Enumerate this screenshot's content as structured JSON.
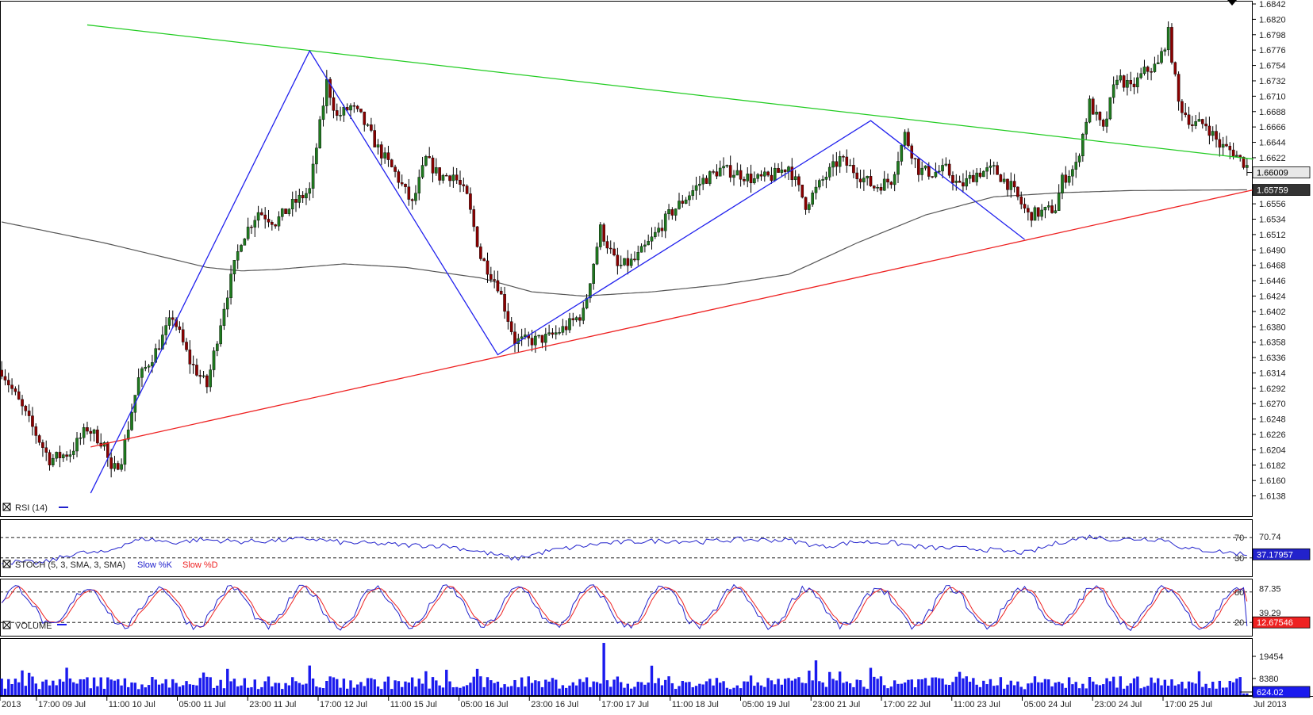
{
  "chart_data": [
    {
      "type": "candlestick",
      "title": "",
      "ylim": [
        1.6116,
        1.6842
      ],
      "y_ticks": [
        "1.6842",
        "1.6820",
        "1.6798",
        "1.6776",
        "1.6754",
        "1.6732",
        "1.6710",
        "1.6688",
        "1.6666",
        "1.6644",
        "1.6622",
        "1.6600",
        "1.6578",
        "1.6556",
        "1.6534",
        "1.6512",
        "1.6490",
        "1.6468",
        "1.6446",
        "1.6424",
        "1.6402",
        "1.6380",
        "1.6358",
        "1.6336",
        "1.6314",
        "1.6292",
        "1.6270",
        "1.6248",
        "1.6226",
        "1.6204",
        "1.6182",
        "1.6160",
        "1.6138"
      ],
      "x_labels": [
        "2013",
        "17:00 09 Jul",
        "11:00 10 Jul",
        "05:00 11 Jul",
        "23:00 11 Jul",
        "17:00 12 Jul",
        "11:00 15 Jul",
        "05:00 16 Jul",
        "23:00 16 Jul",
        "17:00 17 Jul",
        "11:00 18 Jul",
        "05:00 19 Jul",
        "23:00 21 Jul",
        "17:00 22 Jul",
        "11:00 23 Jul",
        "05:00 24 Jul",
        "23:00 24 Jul",
        "17:00 25 Jul",
        "Jul 2013"
      ],
      "price_tags": {
        "last": "1.66009",
        "ma": "1.65759"
      },
      "colors": {
        "bull": "#1f7a1f",
        "bear": "#8b0000",
        "ma": "#555555",
        "resistance": "#22cc22",
        "support": "#ee2222",
        "zigzag": "#2222ee"
      },
      "price_anchors": [
        [
          0,
          1.6318
        ],
        [
          8,
          1.6245
        ],
        [
          14,
          1.619
        ],
        [
          20,
          1.62
        ],
        [
          25,
          1.6235
        ],
        [
          30,
          1.6212
        ],
        [
          32,
          1.617
        ],
        [
          35,
          1.6192
        ],
        [
          40,
          1.6305
        ],
        [
          45,
          1.6345
        ],
        [
          50,
          1.6395
        ],
        [
          55,
          1.633
        ],
        [
          60,
          1.6295
        ],
        [
          65,
          1.641
        ],
        [
          70,
          1.6505
        ],
        [
          75,
          1.6545
        ],
        [
          80,
          1.653
        ],
        [
          85,
          1.6555
        ],
        [
          90,
          1.6575
        ],
        [
          95,
          1.673
        ],
        [
          98,
          1.668
        ],
        [
          102,
          1.6695
        ],
        [
          105,
          1.668
        ],
        [
          110,
          1.6635
        ],
        [
          115,
          1.66
        ],
        [
          120,
          1.6555
        ],
        [
          124,
          1.662
        ],
        [
          128,
          1.6595
        ],
        [
          132,
          1.6598
        ],
        [
          136,
          1.6565
        ],
        [
          140,
          1.648
        ],
        [
          145,
          1.644
        ],
        [
          150,
          1.636
        ],
        [
          155,
          1.636
        ],
        [
          160,
          1.6365
        ],
        [
          165,
          1.638
        ],
        [
          170,
          1.64
        ],
        [
          175,
          1.652
        ],
        [
          180,
          1.6465
        ],
        [
          185,
          1.6475
        ],
        [
          190,
          1.6505
        ],
        [
          195,
          1.654
        ],
        [
          200,
          1.6565
        ],
        [
          205,
          1.659
        ],
        [
          210,
          1.6605
        ],
        [
          215,
          1.66
        ],
        [
          220,
          1.659
        ],
        [
          225,
          1.6595
        ],
        [
          230,
          1.661
        ],
        [
          235,
          1.6555
        ],
        [
          240,
          1.659
        ],
        [
          245,
          1.662
        ],
        [
          250,
          1.66
        ],
        [
          255,
          1.658
        ],
        [
          260,
          1.659
        ],
        [
          264,
          1.6655
        ],
        [
          268,
          1.6605
        ],
        [
          272,
          1.66
        ],
        [
          276,
          1.6605
        ],
        [
          280,
          1.658
        ],
        [
          285,
          1.66
        ],
        [
          290,
          1.6605
        ],
        [
          295,
          1.658
        ],
        [
          300,
          1.654
        ],
        [
          305,
          1.6545
        ],
        [
          308,
          1.655
        ],
        [
          310,
          1.659
        ],
        [
          314,
          1.661
        ],
        [
          318,
          1.67
        ],
        [
          322,
          1.666
        ],
        [
          326,
          1.674
        ],
        [
          330,
          1.672
        ],
        [
          334,
          1.6745
        ],
        [
          338,
          1.6755
        ],
        [
          341,
          1.68
        ],
        [
          344,
          1.67
        ],
        [
          348,
          1.667
        ],
        [
          352,
          1.667
        ],
        [
          356,
          1.664
        ],
        [
          360,
          1.663
        ],
        [
          364,
          1.661
        ]
      ],
      "ma_anchors": [
        [
          0,
          1.653
        ],
        [
          30,
          1.65
        ],
        [
          60,
          1.6465
        ],
        [
          70,
          1.646
        ],
        [
          80,
          1.6462
        ],
        [
          100,
          1.647
        ],
        [
          118,
          1.6465
        ],
        [
          140,
          1.645
        ],
        [
          155,
          1.643
        ],
        [
          170,
          1.6424
        ],
        [
          190,
          1.643
        ],
        [
          210,
          1.644
        ],
        [
          230,
          1.6455
        ],
        [
          250,
          1.65
        ],
        [
          270,
          1.654
        ],
        [
          290,
          1.6566
        ],
        [
          310,
          1.6572
        ],
        [
          330,
          1.6575
        ],
        [
          364,
          1.6576
        ]
      ],
      "trendlines": [
        {
          "name": "resistance",
          "from": [
            25,
            1.6812
          ],
          "to": [
            364,
            1.662
          ]
        },
        {
          "name": "support",
          "from": [
            26,
            1.6208
          ],
          "to": [
            364,
            1.6576
          ]
        }
      ],
      "zigzag": [
        [
          26,
          1.6142
        ],
        [
          90,
          1.6775
        ],
        [
          145,
          1.634
        ],
        [
          254,
          1.6675
        ],
        [
          299,
          1.6505
        ]
      ]
    },
    {
      "type": "line",
      "title": "RSI (14)",
      "ylim": [
        0,
        100
      ],
      "levels": [
        70,
        30
      ],
      "level_labels": [
        "70",
        "30"
      ],
      "right_labels": [
        "70.74"
      ],
      "last_tag": "37.17957",
      "colors": {
        "line": "#2222cc"
      },
      "anchors": [
        [
          0,
          22
        ],
        [
          12,
          20
        ],
        [
          22,
          40
        ],
        [
          30,
          40
        ],
        [
          36,
          58
        ],
        [
          42,
          68
        ],
        [
          50,
          60
        ],
        [
          58,
          66
        ],
        [
          70,
          62
        ],
        [
          80,
          64
        ],
        [
          90,
          68
        ],
        [
          100,
          60
        ],
        [
          110,
          58
        ],
        [
          118,
          55
        ],
        [
          130,
          54
        ],
        [
          140,
          42
        ],
        [
          146,
          34
        ],
        [
          150,
          28
        ],
        [
          160,
          44
        ],
        [
          175,
          58
        ],
        [
          185,
          62
        ],
        [
          195,
          64
        ],
        [
          205,
          62
        ],
        [
          215,
          66
        ],
        [
          230,
          65
        ],
        [
          240,
          52
        ],
        [
          250,
          62
        ],
        [
          260,
          60
        ],
        [
          270,
          50
        ],
        [
          285,
          48
        ],
        [
          295,
          42
        ],
        [
          300,
          40
        ],
        [
          306,
          54
        ],
        [
          310,
          62
        ],
        [
          318,
          72
        ],
        [
          326,
          66
        ],
        [
          334,
          68
        ],
        [
          340,
          66
        ],
        [
          346,
          48
        ],
        [
          354,
          44
        ],
        [
          364,
          37
        ]
      ]
    },
    {
      "type": "line",
      "title": "STOCH (5, 3, SMA, 3, SMA)",
      "ylim": [
        0,
        100
      ],
      "levels": [
        80,
        20
      ],
      "level_labels": [
        "80",
        "20"
      ],
      "right_labels": [
        "87.35",
        "39.29"
      ],
      "last_tag": "12.67546",
      "series": [
        {
          "name": "Slow %K",
          "color": "#2222cc"
        },
        {
          "name": "Slow %D",
          "color": "#ee2222"
        }
      ],
      "period": 10.5,
      "end_value": 12.7
    },
    {
      "type": "bar",
      "title": "VOLUME",
      "y_ticks": [
        "19454",
        "8380"
      ],
      "last_tag": "624.02",
      "colors": {
        "bars": "#1a1aee"
      },
      "peak_value": 27000
    }
  ]
}
